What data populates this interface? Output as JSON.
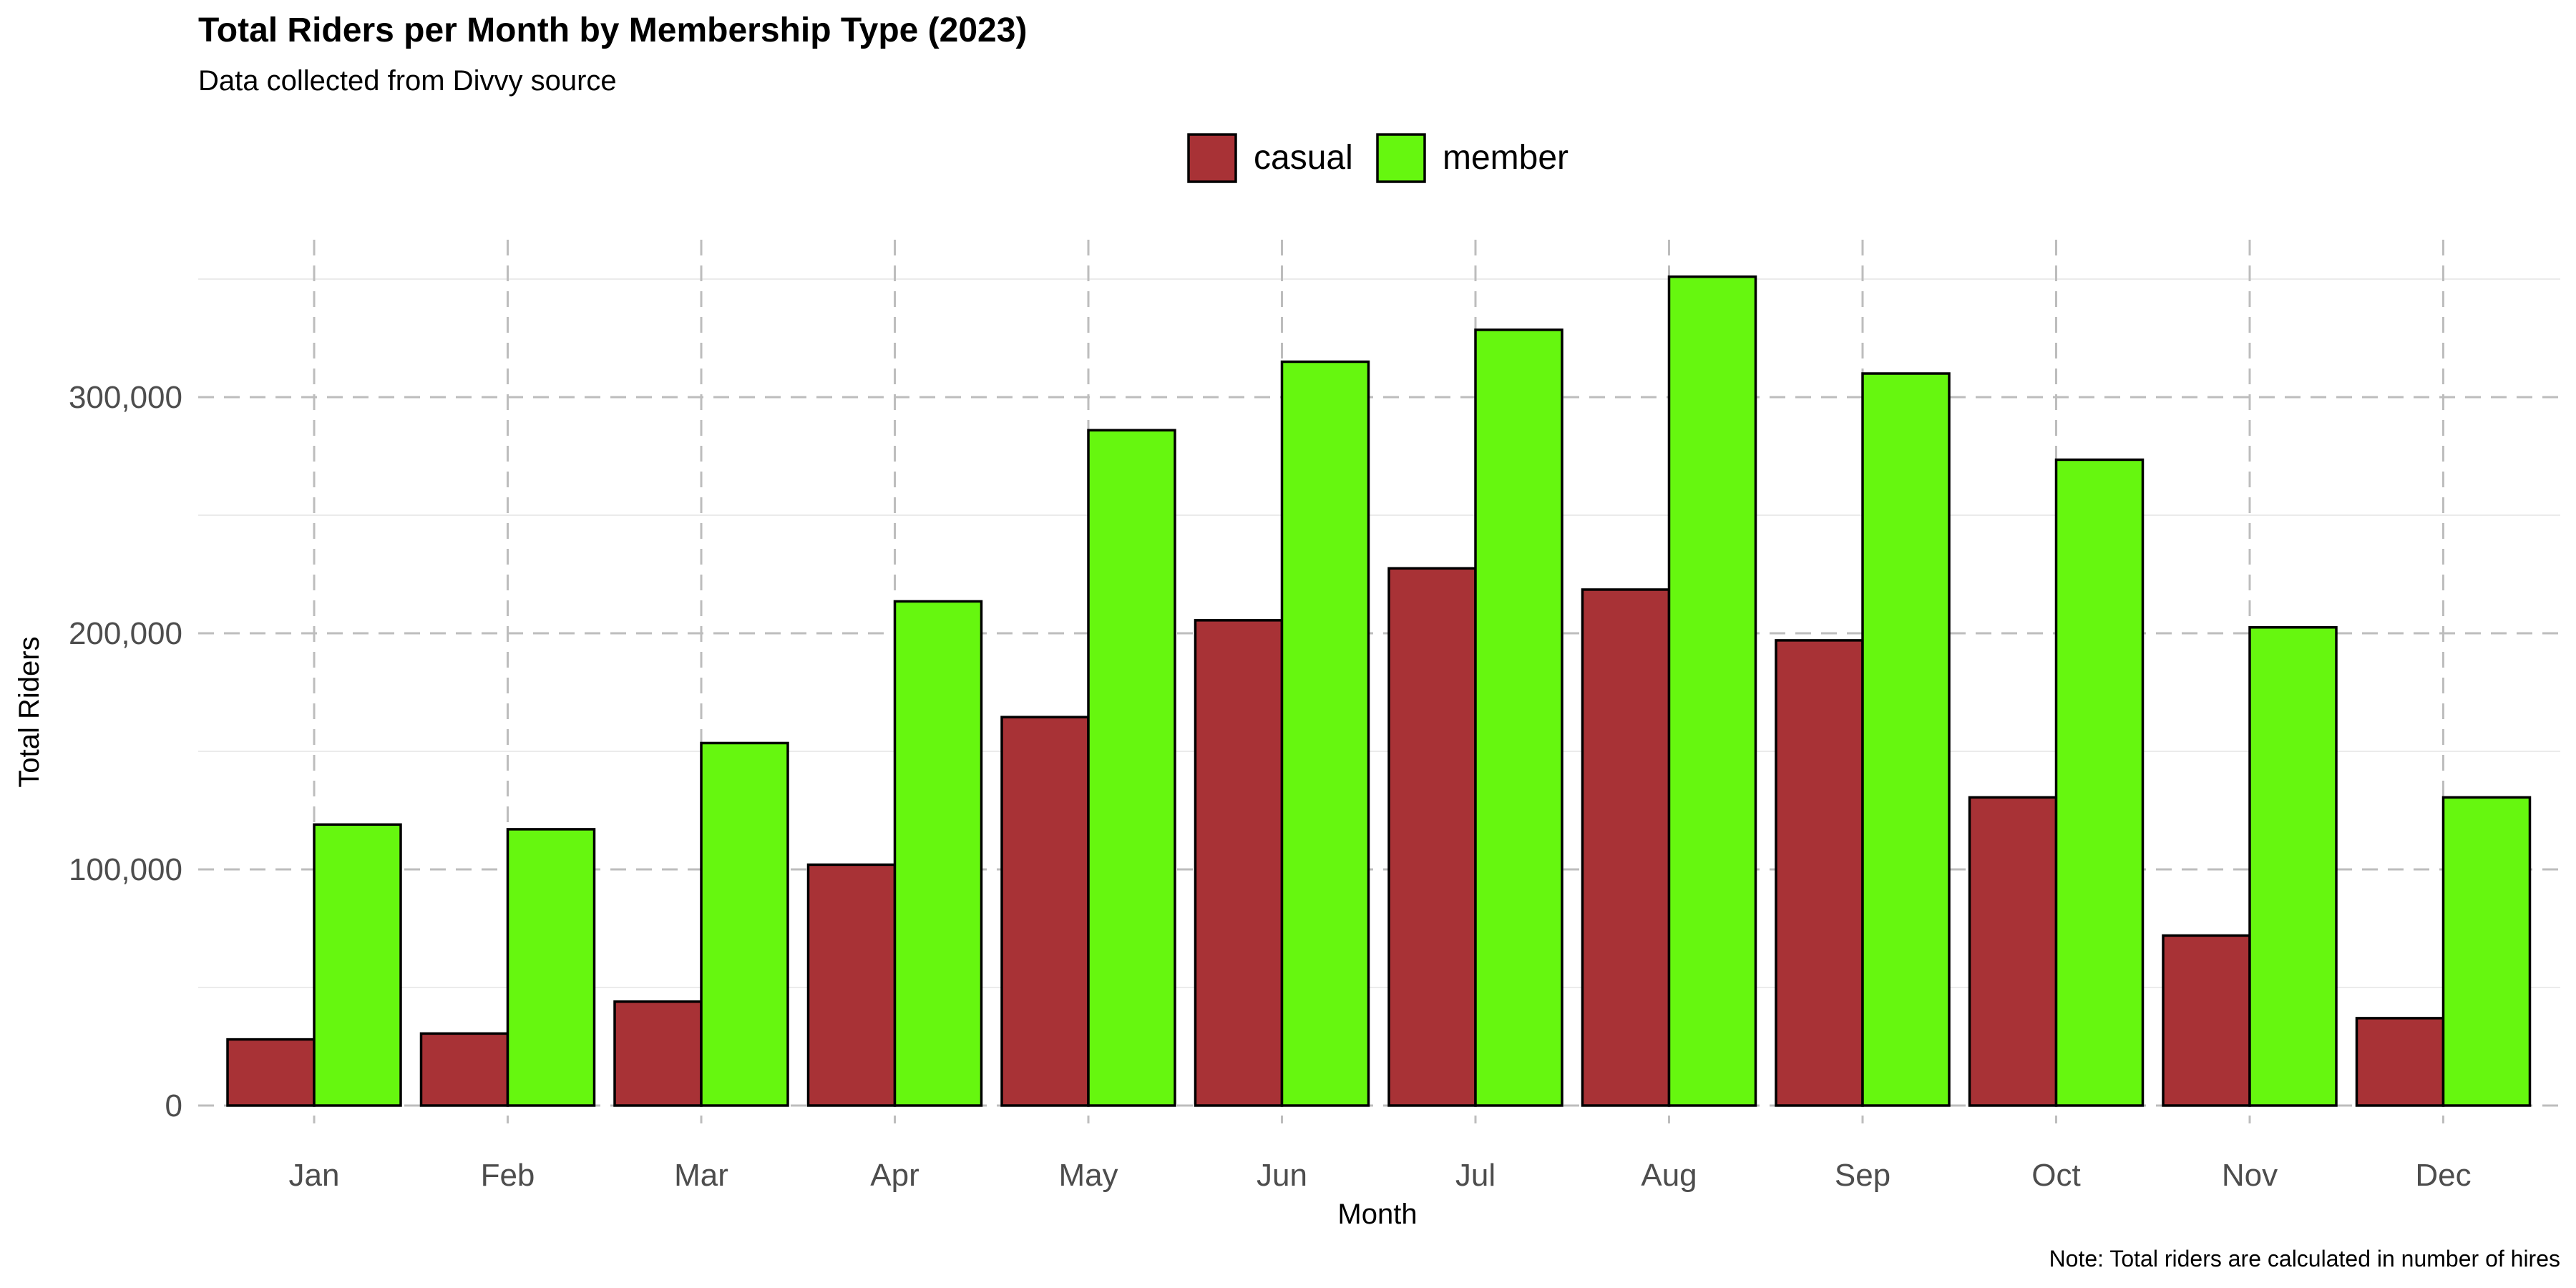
{
  "chart_data": {
    "type": "bar",
    "title": "Total Riders per Month by Membership Type (2023)",
    "subtitle": "Data collected from Divvy source",
    "caption": "Note: Total riders are calculated in number of hires",
    "xlabel": "Month",
    "ylabel": "Total Riders",
    "categories": [
      "Jan",
      "Feb",
      "Mar",
      "Apr",
      "May",
      "Jun",
      "Jul",
      "Aug",
      "Sep",
      "Oct",
      "Nov",
      "Dec"
    ],
    "series": [
      {
        "name": "casual",
        "color": "#A83236",
        "values": [
          28000,
          30500,
          44000,
          102000,
          164500,
          205500,
          227500,
          218500,
          197000,
          130500,
          72000,
          37000
        ]
      },
      {
        "name": "member",
        "color": "#66F70F",
        "values": [
          119000,
          117000,
          153500,
          213500,
          286000,
          315000,
          328500,
          351000,
          310000,
          273500,
          202500,
          130500
        ]
      }
    ],
    "ylim": [
      0,
      350000
    ],
    "yticks": [
      0,
      100000,
      200000,
      300000
    ],
    "ytick_labels": [
      "0",
      "100,000",
      "200,000",
      "300,000"
    ],
    "legend_position": "top",
    "grid": true
  }
}
